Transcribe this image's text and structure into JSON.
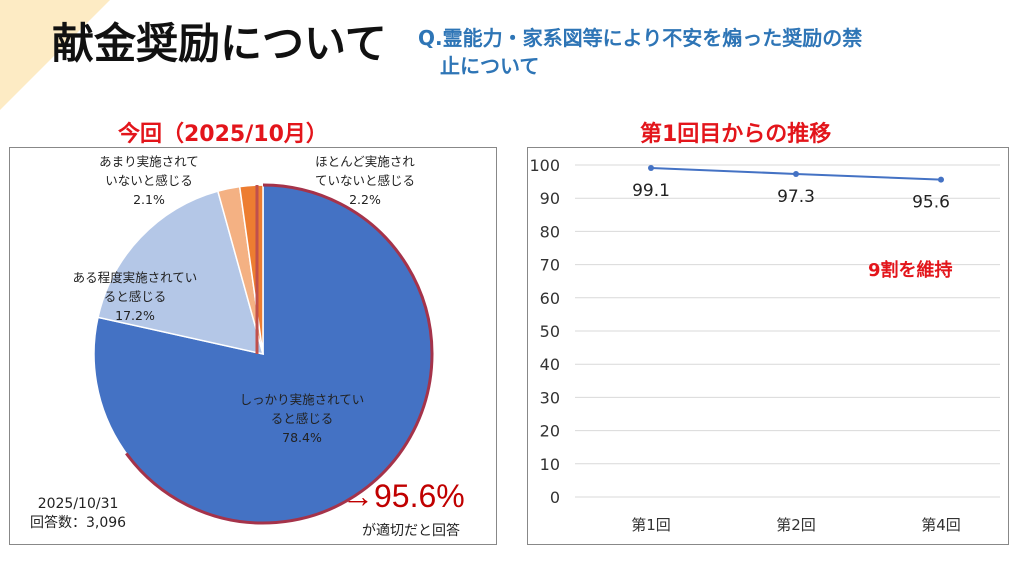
{
  "title": "献金奨励について",
  "question": [
    "Q.霊能力・家系図等により不安を煽った奨励の禁",
    "止について"
  ],
  "pie_title": "今回（2025/10月）",
  "line_title": "第1回目からの推移",
  "pie": {
    "date": "2025/10/31",
    "respondents": "回答数：3,096",
    "highlight": "→95.6%",
    "highlight_note": "が適切だと回答"
  },
  "annotation": "9割を維持",
  "chart_data": [
    {
      "type": "pie",
      "title": "今回（2025/10月）",
      "slices": [
        {
          "label": [
            "しっかり実施されてい",
            "ると感じる"
          ],
          "value": 78.4,
          "value_label": "78.4%",
          "color": "#4472c4"
        },
        {
          "label": [
            "ある程度実施されてい",
            "ると感じる"
          ],
          "value": 17.2,
          "value_label": "17.2%",
          "color": "#b4c7e7"
        },
        {
          "label": [
            "あまり実施されて",
            "いないと感じる"
          ],
          "value": 2.1,
          "value_label": "2.1%",
          "color": "#f4b183"
        },
        {
          "label": [
            "ほとんど実施され",
            "ていないと感じる"
          ],
          "value": 2.2,
          "value_label": "2.2%",
          "color": "#ed7d31"
        }
      ]
    },
    {
      "type": "line",
      "title": "第1回目からの推移",
      "categories": [
        "第1回",
        "第2回",
        "第4回"
      ],
      "values": [
        99.1,
        97.3,
        95.6
      ],
      "value_labels": [
        "99.1",
        "97.3",
        "95.6"
      ],
      "ylim": [
        0,
        100
      ],
      "yticks": [
        "0",
        "10",
        "20",
        "30",
        "40",
        "50",
        "60",
        "70",
        "80",
        "90",
        "100"
      ],
      "color": "#4472c4",
      "grid": true
    }
  ]
}
